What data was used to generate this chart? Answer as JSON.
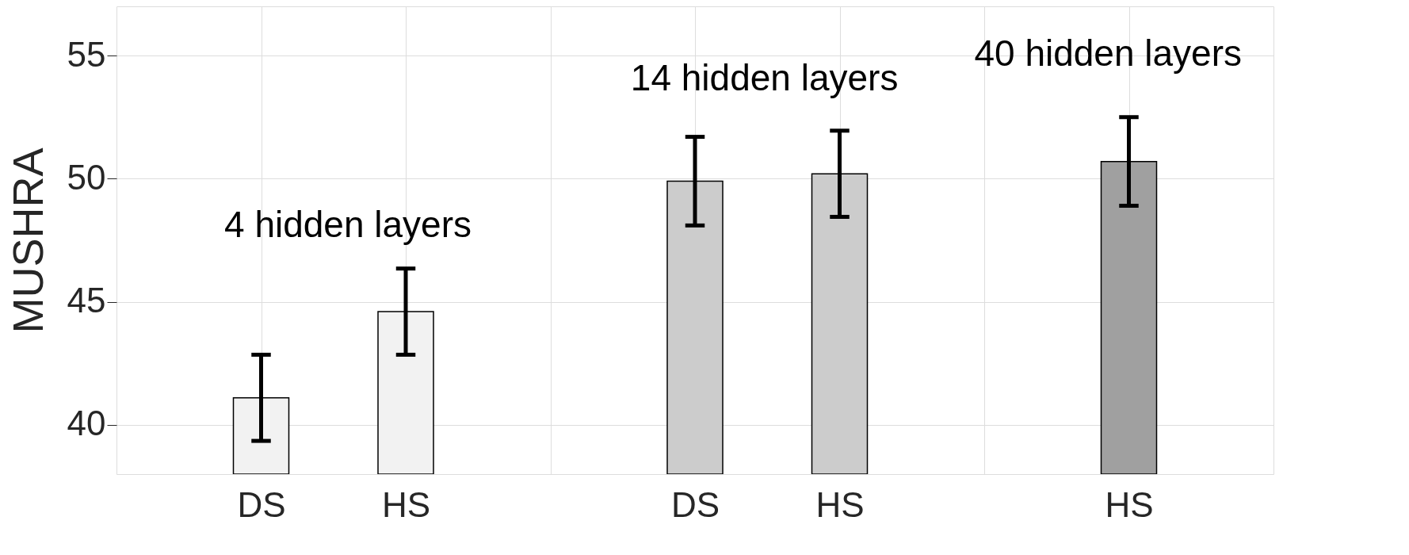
{
  "chart_data": {
    "type": "bar",
    "ylabel": "MUSHRA",
    "categories": [
      "DS",
      "HS",
      null,
      "DS",
      "HS",
      null,
      "HS"
    ],
    "values": [
      41.1,
      44.6,
      null,
      49.9,
      50.2,
      null,
      50.7
    ],
    "colors": [
      "#f2f2f2",
      "#f2f2f2",
      null,
      "#cccccc",
      "#cccccc",
      null,
      "#a0a0a0"
    ],
    "errors": [
      1.75,
      1.75,
      null,
      1.8,
      1.75,
      null,
      1.8
    ],
    "ylim": [
      38,
      57
    ],
    "yticks": [
      40,
      45,
      50,
      55
    ],
    "grid": true,
    "annotations": [
      "4 hidden layers",
      "14 hidden layers",
      "40 hidden layers"
    ]
  }
}
